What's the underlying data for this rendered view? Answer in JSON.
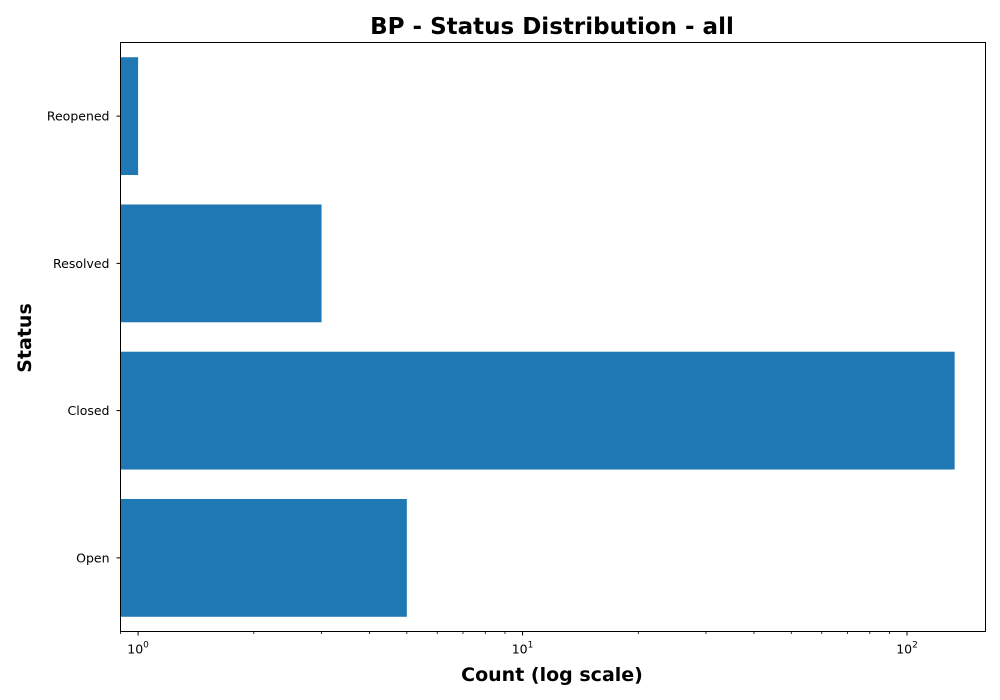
{
  "chart_data": {
    "type": "bar",
    "orientation": "horizontal",
    "title": "BP - Status Distribution - all",
    "xlabel": "Count (log scale)",
    "ylabel": "Status",
    "x_scale": "log",
    "xlim": [
      0.9,
      160
    ],
    "x_ticks": [
      {
        "value": 1,
        "base": "10",
        "exp": "0"
      },
      {
        "value": 10,
        "base": "10",
        "exp": "1"
      },
      {
        "value": 100,
        "base": "10",
        "exp": "2"
      }
    ],
    "categories": [
      "Open",
      "Closed",
      "Resolved",
      "Reopened"
    ],
    "values": [
      5,
      133,
      3,
      1
    ],
    "bar_color": "#1f77b4",
    "grid": false,
    "legend": "none"
  }
}
